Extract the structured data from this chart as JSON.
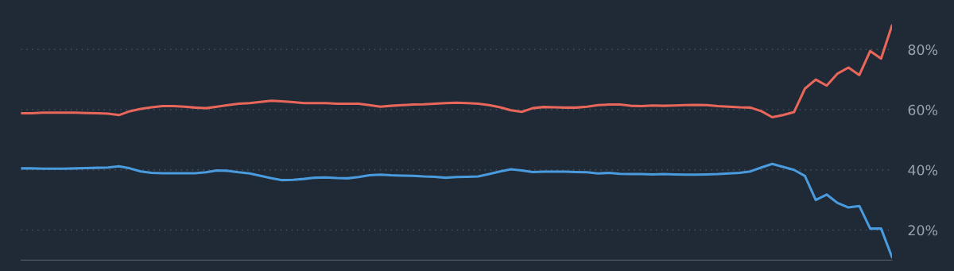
{
  "chart_data": {
    "type": "line",
    "categories": [
      null,
      null,
      null,
      null,
      null,
      null,
      null,
      null,
      null,
      null,
      null,
      null,
      null,
      null,
      null,
      null,
      null,
      null,
      null,
      null,
      null,
      null,
      null,
      null,
      null,
      null,
      null,
      null,
      null,
      null,
      null,
      null,
      null,
      null,
      null,
      null,
      null,
      null,
      null,
      null,
      null,
      null,
      null,
      null,
      null,
      null,
      null,
      null,
      null,
      null,
      null,
      null,
      null,
      null,
      null,
      null,
      null,
      null,
      null,
      null,
      null,
      null,
      null,
      null,
      null,
      null,
      null,
      null,
      null,
      null,
      null,
      null,
      null,
      null,
      null,
      null,
      null,
      null,
      null,
      null,
      null
    ],
    "series": [
      {
        "color": "#e8665a",
        "values": [
          58.8,
          58.8,
          59,
          59,
          59,
          59,
          58.9,
          58.8,
          58.7,
          58.2,
          59.5,
          60.3,
          60.8,
          61.2,
          61.2,
          61,
          60.7,
          60.5,
          61,
          61.5,
          62,
          62.2,
          62.6,
          63,
          62.8,
          62.5,
          62.2,
          62.2,
          62.2,
          62,
          62,
          62,
          61.5,
          61,
          61.3,
          61.5,
          61.7,
          61.8,
          62,
          62.2,
          62.3,
          62.2,
          62,
          61.5,
          60.8,
          59.8,
          59.3,
          60.5,
          60.9,
          60.8,
          60.7,
          60.7,
          61,
          61.5,
          61.7,
          61.7,
          61.3,
          61.2,
          61.4,
          61.3,
          61.4,
          61.5,
          61.6,
          61.5,
          61.2,
          61,
          60.8,
          60.7,
          59.5,
          57.5,
          58.2,
          59.2,
          67,
          70,
          68,
          72,
          74,
          71.5,
          79.5,
          77,
          88
        ]
      },
      {
        "color": "#4a9ade",
        "values": [
          40.5,
          40.5,
          40.4,
          40.4,
          40.4,
          40.5,
          40.6,
          40.7,
          40.8,
          41.2,
          40.5,
          39.5,
          39,
          38.9,
          38.9,
          38.9,
          38.9,
          39.2,
          39.8,
          39.7,
          39.2,
          38.8,
          38,
          37.2,
          36.6,
          36.7,
          37,
          37.4,
          37.5,
          37.3,
          37.2,
          37.6,
          38.2,
          38.4,
          38.2,
          38.1,
          38,
          37.8,
          37.7,
          37.4,
          37.6,
          37.7,
          37.8,
          38.6,
          39.5,
          40.2,
          39.8,
          39.3,
          39.4,
          39.4,
          39.4,
          39.3,
          39.2,
          38.8,
          39,
          38.7,
          38.6,
          38.6,
          38.5,
          38.6,
          38.5,
          38.4,
          38.4,
          38.5,
          38.6,
          38.8,
          39,
          39.5,
          40.8,
          42,
          41,
          40,
          38,
          30,
          31.8,
          29,
          27.5,
          28,
          20.5,
          20.5,
          11
        ]
      }
    ],
    "ylim": [
      10,
      96
    ],
    "yticks": [
      {
        "value": 20,
        "label": "20%"
      },
      {
        "value": 40,
        "label": "40%"
      },
      {
        "value": 60,
        "label": "60%"
      },
      {
        "value": 80,
        "label": "80%"
      }
    ],
    "tick_labels": "y",
    "grid": "y",
    "line_style": "solid"
  }
}
